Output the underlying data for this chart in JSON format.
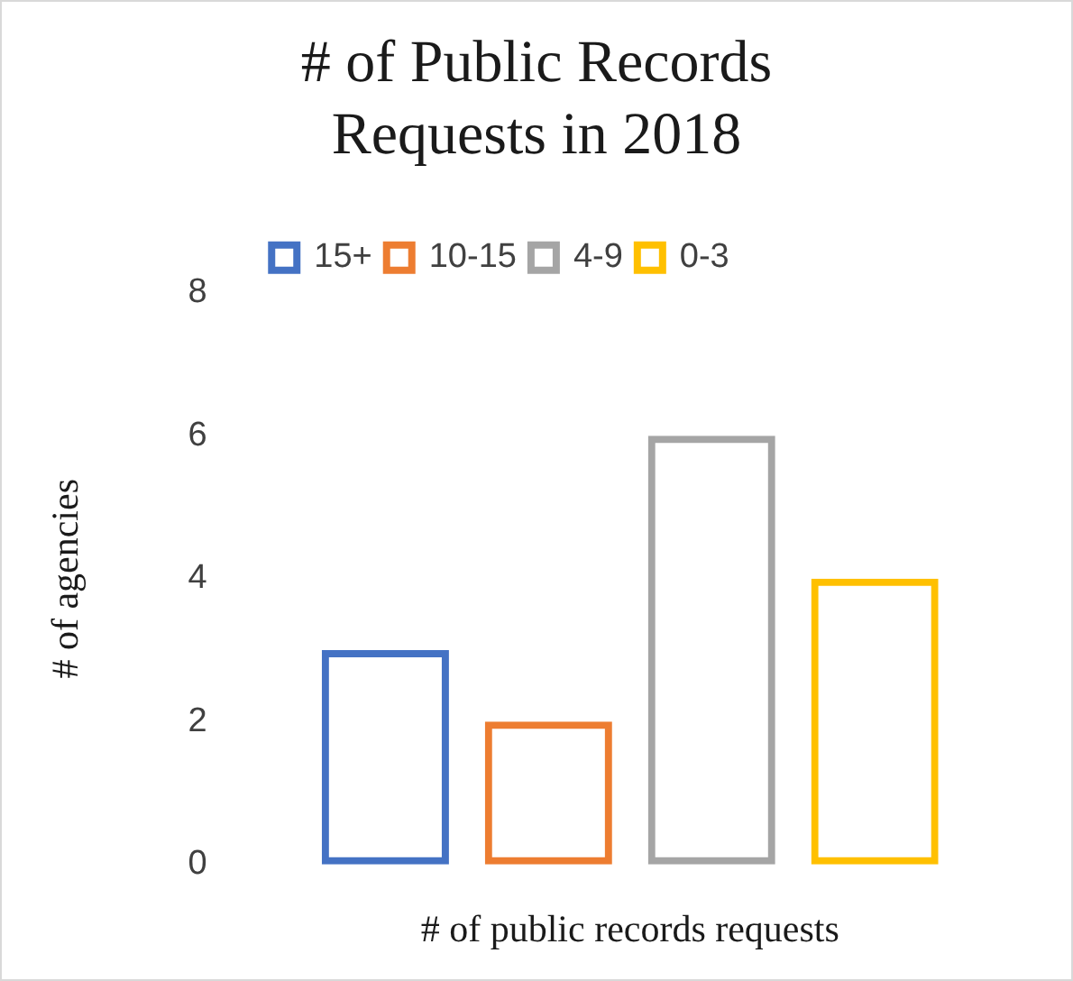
{
  "chart_data": {
    "type": "bar",
    "title": "# of Public Records Requests in 2018",
    "xlabel": "# of public records requests",
    "ylabel": "# of agencies",
    "categories": [
      null
    ],
    "series": [
      {
        "name": "15+",
        "color": "#4472c4",
        "values": [
          3
        ]
      },
      {
        "name": "10-15",
        "color": "#ed7d31",
        "values": [
          2
        ]
      },
      {
        "name": "4-9",
        "color": "#a5a5a5",
        "values": [
          6
        ]
      },
      {
        "name": "0-3",
        "color": "#ffc000",
        "values": [
          4
        ]
      }
    ],
    "ylim": [
      0,
      8
    ],
    "yticks": [
      0,
      2,
      4,
      6,
      8
    ],
    "grid": false,
    "legend": "top"
  }
}
